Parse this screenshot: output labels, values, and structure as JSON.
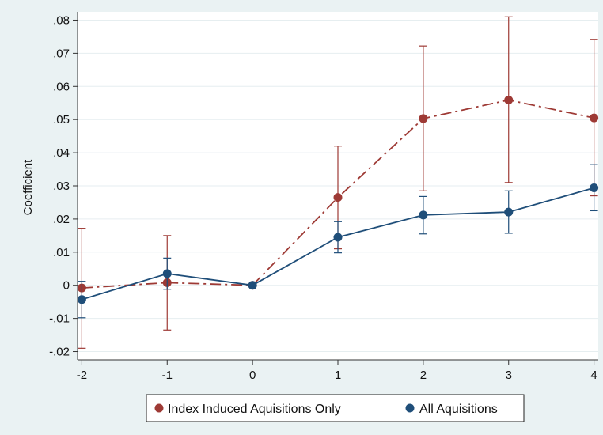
{
  "chart_data": {
    "type": "line",
    "title": "",
    "xlabel": "",
    "ylabel": "Coefficient",
    "x": [
      -2,
      -1,
      0,
      1,
      2,
      3,
      4
    ],
    "x_tick_labels": [
      "-2",
      "-1",
      "0",
      "1",
      "2",
      "3",
      "4"
    ],
    "xlim": [
      -2.05,
      4.05
    ],
    "ylim": [
      -0.0225,
      0.0825
    ],
    "y_ticks": [
      -0.02,
      -0.01,
      0,
      0.01,
      0.02,
      0.03,
      0.04,
      0.05,
      0.06,
      0.07,
      0.08
    ],
    "y_tick_labels": [
      "-.02",
      "-.01",
      "0",
      ".01",
      ".02",
      ".03",
      ".04",
      ".05",
      ".06",
      ".07",
      ".08"
    ],
    "grid": true,
    "legend_position": "bottom",
    "series": [
      {
        "name": "Index Induced Aquisitions Only",
        "color": "#9e3a35",
        "line_style": "dash-dot",
        "values": [
          -0.0008,
          0.0008,
          0.0,
          0.0265,
          0.0503,
          0.0559,
          0.0505
        ],
        "ci_low": [
          -0.019,
          -0.0135,
          0.0,
          0.011,
          0.0285,
          0.031,
          0.027
        ],
        "ci_high": [
          0.0172,
          0.015,
          0.0,
          0.042,
          0.0722,
          0.081,
          0.0742
        ]
      },
      {
        "name": "All Aquisitions",
        "color": "#1f4e79",
        "line_style": "solid",
        "values": [
          -0.0043,
          0.0035,
          0.0,
          0.0145,
          0.0212,
          0.0221,
          0.0294
        ],
        "ci_low": [
          -0.0098,
          -0.0012,
          0.0,
          0.0098,
          0.0155,
          0.0157,
          0.0225
        ],
        "ci_high": [
          0.0012,
          0.0082,
          0.0,
          0.0192,
          0.0268,
          0.0285,
          0.0364
        ]
      }
    ]
  },
  "colors": {
    "background": "#eaf2f3",
    "plot_background": "#ffffff",
    "grid": "#e6eef0",
    "axis": "#333333"
  }
}
